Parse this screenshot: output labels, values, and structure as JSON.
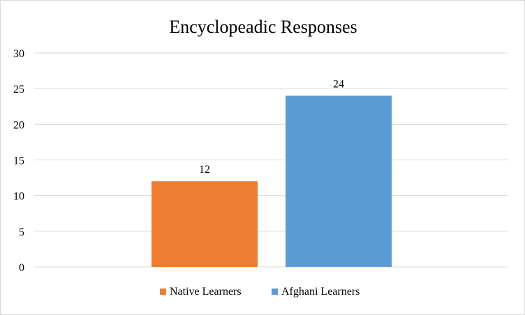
{
  "chart_data": {
    "type": "bar",
    "title": "Encyclopeadic Responses",
    "xlabel": "",
    "ylabel": "",
    "ylim": [
      0,
      30
    ],
    "yticks": [
      0,
      5,
      10,
      15,
      20,
      25,
      30
    ],
    "grid": true,
    "legend_position": "bottom",
    "series": [
      {
        "name": "Native Learners",
        "values": [
          12
        ],
        "color": "#ED7D31"
      },
      {
        "name": "Afghani Learners",
        "values": [
          24
        ],
        "color": "#5B9BD5"
      }
    ],
    "data_labels": true
  }
}
